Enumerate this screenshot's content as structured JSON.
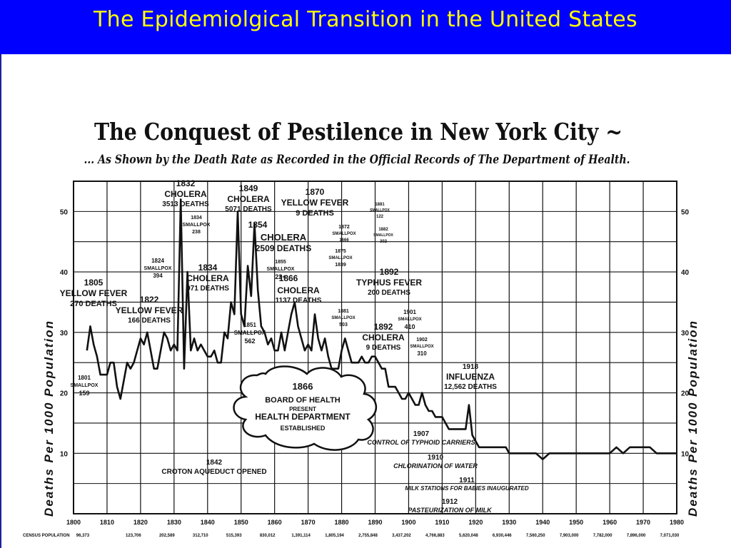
{
  "slide": {
    "title": "The Epidemiolgical Transition in the United States",
    "banner_color": "#0000ff",
    "title_color": "#ffff00"
  },
  "chart_data": {
    "type": "line",
    "title": "The Conquest of Pestilence in New York City ~",
    "subtitle": "... As Shown by the Death Rate as Recorded in the Official Records of The Department of Health.",
    "ylabel": "Deaths Per 1000 Population",
    "ylabel_right": "Deaths Per 1000 Population",
    "xlim": [
      1800,
      1980
    ],
    "ylim": [
      0,
      55
    ],
    "y_ticks": [
      10,
      20,
      30,
      40,
      50
    ],
    "x_ticks": [
      1800,
      1810,
      1820,
      1830,
      1840,
      1850,
      1860,
      1870,
      1880,
      1890,
      1900,
      1910,
      1920,
      1930,
      1940,
      1950,
      1960,
      1970,
      1980
    ],
    "grid": true,
    "census_label": "CENSUS POPULATION",
    "census_values": [
      "96,373",
      "123,706",
      "202,589",
      "312,710",
      "515,393",
      "830,012",
      "1,391,114",
      "1,805,194",
      "2,755,848",
      "3,437,202",
      "4,766,883",
      "5,620,048",
      "6,930,446",
      "7,560,250",
      "7,903,000",
      "7,782,000",
      "7,896,000",
      "7,071,030"
    ],
    "series": [
      {
        "color": "#111111",
        "points": [
          [
            1804,
            27
          ],
          [
            1805,
            31
          ],
          [
            1806,
            28
          ],
          [
            1807,
            26
          ],
          [
            1808,
            23
          ],
          [
            1809,
            23
          ],
          [
            1810,
            23
          ],
          [
            1811,
            25
          ],
          [
            1812,
            25
          ],
          [
            1813,
            21
          ],
          [
            1814,
            19
          ],
          [
            1815,
            22
          ],
          [
            1816,
            25
          ],
          [
            1817,
            24
          ],
          [
            1818,
            25
          ],
          [
            1819,
            27
          ],
          [
            1820,
            29
          ],
          [
            1821,
            28
          ],
          [
            1822,
            30
          ],
          [
            1823,
            27
          ],
          [
            1824,
            24
          ],
          [
            1825,
            24
          ],
          [
            1826,
            27
          ],
          [
            1827,
            30
          ],
          [
            1828,
            29
          ],
          [
            1829,
            27
          ],
          [
            1830,
            28
          ],
          [
            1831,
            27
          ],
          [
            1832,
            52
          ],
          [
            1833,
            24
          ],
          [
            1834,
            40
          ],
          [
            1835,
            27
          ],
          [
            1836,
            29
          ],
          [
            1837,
            27
          ],
          [
            1838,
            28
          ],
          [
            1839,
            27
          ],
          [
            1840,
            26
          ],
          [
            1841,
            26
          ],
          [
            1842,
            27
          ],
          [
            1843,
            25
          ],
          [
            1844,
            25
          ],
          [
            1845,
            30
          ],
          [
            1846,
            29
          ],
          [
            1847,
            35
          ],
          [
            1848,
            33
          ],
          [
            1849,
            50
          ],
          [
            1850,
            33
          ],
          [
            1851,
            31
          ],
          [
            1852,
            41
          ],
          [
            1853,
            36
          ],
          [
            1854,
            48
          ],
          [
            1855,
            37
          ],
          [
            1856,
            31
          ],
          [
            1857,
            30
          ],
          [
            1858,
            28
          ],
          [
            1859,
            29
          ],
          [
            1860,
            27
          ],
          [
            1861,
            27
          ],
          [
            1862,
            30
          ],
          [
            1863,
            27
          ],
          [
            1864,
            30
          ],
          [
            1865,
            33
          ],
          [
            1866,
            35
          ],
          [
            1867,
            31
          ],
          [
            1868,
            29
          ],
          [
            1869,
            27
          ],
          [
            1870,
            28
          ],
          [
            1871,
            27
          ],
          [
            1872,
            33
          ],
          [
            1873,
            29
          ],
          [
            1874,
            27
          ],
          [
            1875,
            29
          ],
          [
            1876,
            26
          ],
          [
            1877,
            24
          ],
          [
            1878,
            24
          ],
          [
            1879,
            24
          ],
          [
            1880,
            27
          ],
          [
            1881,
            29
          ],
          [
            1882,
            27
          ],
          [
            1883,
            25
          ],
          [
            1884,
            25
          ],
          [
            1885,
            25
          ],
          [
            1886,
            26
          ],
          [
            1887,
            25
          ],
          [
            1888,
            25
          ],
          [
            1889,
            26
          ],
          [
            1890,
            26
          ],
          [
            1891,
            25
          ],
          [
            1892,
            24
          ],
          [
            1893,
            24
          ],
          [
            1894,
            21
          ],
          [
            1895,
            21
          ],
          [
            1896,
            21
          ],
          [
            1897,
            20
          ],
          [
            1898,
            19
          ],
          [
            1899,
            19
          ],
          [
            1900,
            20
          ],
          [
            1901,
            19
          ],
          [
            1902,
            18
          ],
          [
            1903,
            18
          ],
          [
            1904,
            20
          ],
          [
            1905,
            18
          ],
          [
            1906,
            17
          ],
          [
            1907,
            17
          ],
          [
            1908,
            16
          ],
          [
            1909,
            16
          ],
          [
            1910,
            16
          ],
          [
            1911,
            15
          ],
          [
            1912,
            14
          ],
          [
            1913,
            14
          ],
          [
            1914,
            14
          ],
          [
            1915,
            14
          ],
          [
            1916,
            14
          ],
          [
            1917,
            14
          ],
          [
            1918,
            18
          ],
          [
            1919,
            13
          ],
          [
            1920,
            12
          ],
          [
            1921,
            11
          ],
          [
            1922,
            11
          ],
          [
            1923,
            11
          ],
          [
            1924,
            11
          ],
          [
            1925,
            11
          ],
          [
            1926,
            11
          ],
          [
            1927,
            11
          ],
          [
            1928,
            11
          ],
          [
            1929,
            11
          ],
          [
            1930,
            10
          ],
          [
            1932,
            10
          ],
          [
            1934,
            10
          ],
          [
            1936,
            10
          ],
          [
            1938,
            10
          ],
          [
            1940,
            9
          ],
          [
            1942,
            10
          ],
          [
            1944,
            10
          ],
          [
            1946,
            10
          ],
          [
            1948,
            10
          ],
          [
            1950,
            10
          ],
          [
            1952,
            10
          ],
          [
            1954,
            10
          ],
          [
            1956,
            10
          ],
          [
            1958,
            10
          ],
          [
            1960,
            10
          ],
          [
            1962,
            11
          ],
          [
            1964,
            10
          ],
          [
            1966,
            11
          ],
          [
            1968,
            11
          ],
          [
            1970,
            11
          ],
          [
            1972,
            11
          ],
          [
            1974,
            10
          ],
          [
            1976,
            10
          ],
          [
            1978,
            10
          ],
          [
            1980,
            10
          ]
        ]
      }
    ],
    "annotations": [
      {
        "lines": [
          "1805",
          "YELLOW FEVER",
          "270 DEATHS"
        ]
      },
      {
        "lines": [
          "1822",
          "YELLOW FEVER",
          "166 DEATHS"
        ]
      },
      {
        "lines": [
          "1824",
          "SMALLPOX",
          "394"
        ]
      },
      {
        "lines": [
          "1832",
          "CHOLERA",
          "3513 DEATHS"
        ]
      },
      {
        "lines": [
          "1834",
          "SMALLPOX",
          "238"
        ]
      },
      {
        "lines": [
          "1834",
          "CHOLERA",
          "971 DEATHS"
        ]
      },
      {
        "lines": [
          "1801",
          "SMALLPOX",
          "159"
        ]
      },
      {
        "lines": [
          "1849",
          "CHOLERA",
          "5071 DEATHS"
        ]
      },
      {
        "lines": [
          "1854"
        ]
      },
      {
        "lines": [
          "1851",
          "SMALLPOX",
          "562"
        ]
      },
      {
        "lines": [
          "1870",
          "YELLOW FEVER",
          "9 DEATHS"
        ]
      },
      {
        "lines": [
          "CHOLERA",
          "2509 DEATHS"
        ]
      },
      {
        "lines": [
          "1855",
          "SMALLPOX",
          "22+"
        ]
      },
      {
        "lines": [
          "1866"
        ]
      },
      {
        "lines": [
          "CHOLERA",
          "1137 DEATHS"
        ]
      },
      {
        "lines": [
          "1872",
          "SMALLPOX",
          "1666"
        ]
      },
      {
        "lines": [
          "1875",
          "SMALLPOX",
          "1839"
        ]
      },
      {
        "lines": [
          "1881",
          "SMALLPOX",
          "122"
        ]
      },
      {
        "lines": [
          "1882",
          "SMALLPOX",
          "302"
        ]
      },
      {
        "lines": [
          "1892",
          "TYPHUS FEVER",
          "200 DEATHS"
        ]
      },
      {
        "lines": [
          "1881",
          "SMALLPOX",
          "503"
        ]
      },
      {
        "lines": [
          "1892",
          "CHOLERA",
          "9 DEATHS"
        ]
      },
      {
        "lines": [
          "1901",
          "SMALLPOX",
          "410"
        ]
      },
      {
        "lines": [
          "1902",
          "SMALLPOX",
          "310"
        ]
      },
      {
        "lines": [
          "1918",
          "INFLUENZA",
          "12,562 DEATHS"
        ]
      },
      {
        "lines": [
          "1866",
          "BOARD OF HEALTH",
          "PRESENT",
          "HEALTH DEPARTMENT",
          "ESTABLISHED"
        ]
      },
      {
        "lines": [
          "1842",
          "CROTON AQUEDUCT OPENED"
        ]
      },
      {
        "lines": [
          "1907",
          "CONTROL OF TYPHOID CARRIERS"
        ]
      },
      {
        "lines": [
          "1910",
          "CHLORINATION OF WATER"
        ]
      },
      {
        "lines": [
          "1911",
          "MILK STATIONS FOR BABIES INAUGURATED"
        ]
      },
      {
        "lines": [
          "1912",
          "PASTEURIZATION OF MILK"
        ]
      }
    ]
  }
}
